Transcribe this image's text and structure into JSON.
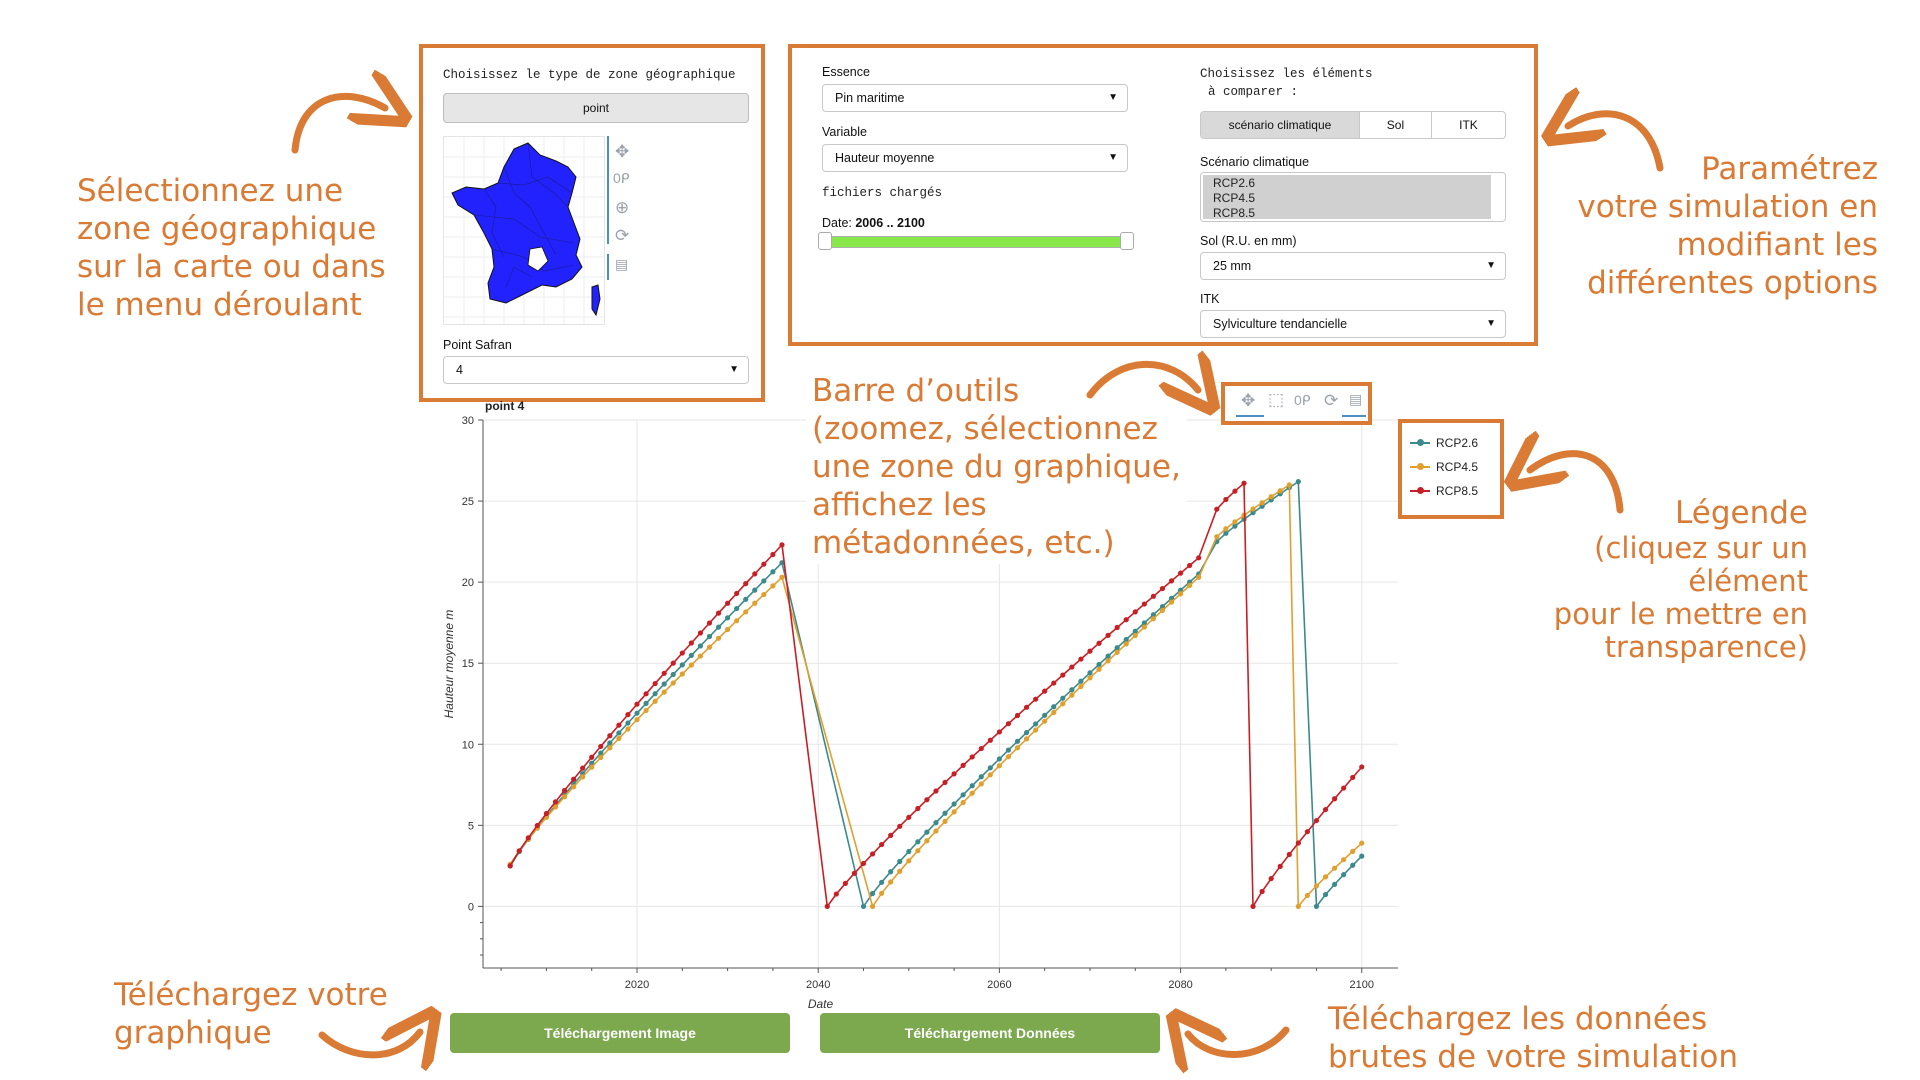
{
  "zone_panel": {
    "title": "Choisissez le type de zone géographique",
    "zone_type_button": "point",
    "point_label": "Point Safran",
    "point_value": "4"
  },
  "params_panel": {
    "essence_label": "Essence",
    "essence_value": "Pin maritime",
    "variable_label": "Variable",
    "variable_value": "Hauteur moyenne",
    "files_loaded": "fichiers chargés",
    "date_label": "Date: ",
    "date_range": "2006 .. 2100",
    "slider_start": 2006,
    "slider_end": 2100,
    "compare_title_line1": "Choisissez les éléments",
    "compare_title_line2": "à comparer :",
    "compare_tabs": [
      "scénario climatique",
      "Sol",
      "ITK"
    ],
    "compare_active": "scénario climatique",
    "scenario_label": "Scénario climatique",
    "scenario_options": [
      "RCP2.6",
      "RCP4.5",
      "RCP8.5"
    ],
    "sol_label": "Sol (R.U. en mm)",
    "sol_value": "25 mm",
    "itk_label": "ITK",
    "itk_value": "Sylviculture tendancielle"
  },
  "annotations": {
    "zone": "Sélectionnez une\nzone géographique\nsur la carte ou dans\nle menu déroulant",
    "params": "Paramétrez\nvotre simulation en\nmodifiant les\ndifférentes options",
    "toolbar": "Barre d’outils\n(zoomez, sélectionnez\nune zone du graphique,\naffichez les\nmétadonnées, etc.)",
    "legend_title": "Légende",
    "legend_desc": "(cliquez sur un élément\npour le mettre en\ntransparence)",
    "download_image": "Téléchargez votre\ngraphique",
    "download_data": "Téléchargez les données\nbrutes de votre simulation"
  },
  "downloads": {
    "image_button": "Téléchargement Image",
    "data_button": "Téléchargement Données"
  },
  "icons": {
    "pan": "pan-icon",
    "box_select": "box-select-icon",
    "wheel_zoom": "wheel-zoom-icon",
    "reset": "reset-icon",
    "hover": "hover-icon"
  },
  "chart_data": {
    "type": "line",
    "title": "point 4",
    "xlabel": "Date",
    "ylabel": "Hauteur moyenne m",
    "xlim": [
      2003,
      2104
    ],
    "ylim": [
      -3.8,
      30
    ],
    "x_ticks": [
      2020,
      2040,
      2060,
      2080,
      2100
    ],
    "y_ticks": [
      0,
      5,
      10,
      15,
      20,
      25,
      30
    ],
    "grid": true,
    "legend_position": "top-right",
    "series": [
      {
        "name": "RCP2.6",
        "color": "#3d8a8c",
        "segments": [
          {
            "x0": 2006,
            "x1": 2036,
            "y0": 2.5,
            "y1": 21.2
          },
          {
            "x0": 2045,
            "x1": 2082,
            "y0": 0.0,
            "y1": 20.5
          },
          {
            "x0": 2084,
            "x1": 2093,
            "y0": 22.5,
            "y1": 26.2
          },
          {
            "x0": 2095,
            "x1": 2100,
            "y0": 0.0,
            "y1": 3.1
          }
        ]
      },
      {
        "name": "RCP4.5",
        "color": "#e0a030",
        "segments": [
          {
            "x0": 2006,
            "x1": 2036,
            "y0": 2.6,
            "y1": 20.3
          },
          {
            "x0": 2046,
            "x1": 2082,
            "y0": 0.0,
            "y1": 20.3
          },
          {
            "x0": 2084,
            "x1": 2092,
            "y0": 22.8,
            "y1": 26.0
          },
          {
            "x0": 2093,
            "x1": 2100,
            "y0": 0.0,
            "y1": 3.9
          }
        ]
      },
      {
        "name": "RCP8.5",
        "color": "#c61f26",
        "segments": [
          {
            "x0": 2006,
            "x1": 2036,
            "y0": 2.5,
            "y1": 22.3
          },
          {
            "x0": 2041,
            "x1": 2082,
            "y0": 0.0,
            "y1": 21.5
          },
          {
            "x0": 2084,
            "x1": 2087,
            "y0": 24.5,
            "y1": 26.1
          },
          {
            "x0": 2088,
            "x1": 2100,
            "y0": 0.0,
            "y1": 8.6
          }
        ]
      }
    ]
  }
}
